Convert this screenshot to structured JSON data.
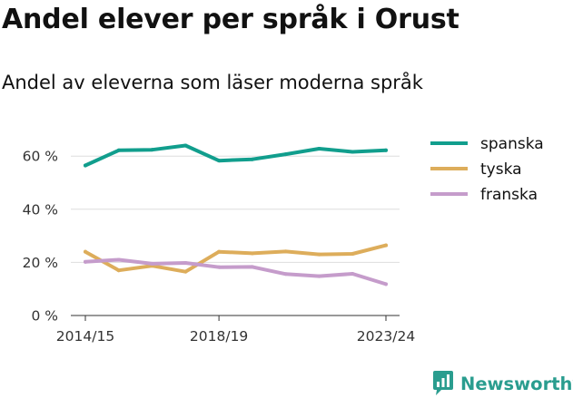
{
  "title": "Andel elever per språk i Orust",
  "subtitle": "Andel av eleverna som läser moderna språk",
  "brand": {
    "name": "Newsworthy",
    "logo_icon": "newsworthy-chart-icon",
    "color": "#2a9d8f"
  },
  "chart_data": {
    "type": "line",
    "title": "Andel elever per språk i Orust",
    "subtitle": "Andel av eleverna som läser moderna språk",
    "x": [
      "2014/15",
      "2015/16",
      "2016/17",
      "2017/18",
      "2018/19",
      "2019/20",
      "2020/21",
      "2021/22",
      "2022/23",
      "2023/24"
    ],
    "x_tick_labels": [
      "2014/15",
      "2018/19",
      "2023/24"
    ],
    "y_ticks": [
      0,
      20,
      40,
      60
    ],
    "y_tick_labels": [
      "0 %",
      "20 %",
      "40 %",
      "60 %"
    ],
    "ylim": [
      0,
      70
    ],
    "y_unit": "%",
    "grid": "horizontal",
    "legend_position": "top-right",
    "series": [
      {
        "name": "spanska",
        "color": "#119e8d",
        "values": [
          56.5,
          62.2,
          62.4,
          64.0,
          58.3,
          58.8,
          60.7,
          62.8,
          61.6,
          62.2
        ]
      },
      {
        "name": "tyska",
        "color": "#ddad5b",
        "values": [
          24.0,
          17.0,
          18.7,
          16.5,
          24.0,
          23.4,
          24.1,
          23.0,
          23.2,
          26.4
        ]
      },
      {
        "name": "franska",
        "color": "#c59ccb",
        "values": [
          20.2,
          21.0,
          19.5,
          19.8,
          18.2,
          18.3,
          15.6,
          14.8,
          15.7,
          11.8
        ]
      }
    ]
  }
}
